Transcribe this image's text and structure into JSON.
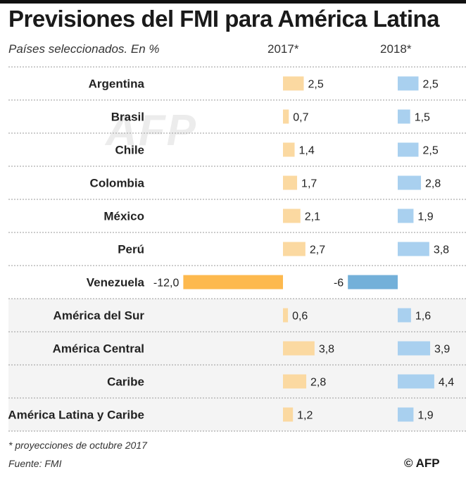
{
  "title": "Previsiones del FMI para América Latina",
  "subtitle": "Países seleccionados. En %",
  "columns": [
    "2017*",
    "2018*"
  ],
  "footnote": "* proyecciones de octubre 2017",
  "source": "Fuente: FMI",
  "credit": "© AFP",
  "watermark": "AFP",
  "colors": {
    "y2017": "#fbd9a1",
    "y2017_negative": "#fdb94e",
    "y2018": "#a9d0ef",
    "y2018_negative": "#73b0d9",
    "shaded_row": "#f4f4f4",
    "divider": "#9a9a9a"
  },
  "chart_data": {
    "type": "bar",
    "categories": [
      "Argentina",
      "Brasil",
      "Chile",
      "Colombia",
      "México",
      "Perú",
      "Venezuela",
      "América del Sur",
      "América Central",
      "Caribe",
      "América Latina y Caribe"
    ],
    "series": [
      {
        "name": "2017*",
        "values": [
          2.5,
          0.7,
          1.4,
          1.7,
          2.1,
          2.7,
          -12.0,
          0.6,
          3.8,
          2.8,
          1.2
        ],
        "labels": [
          "2,5",
          "0,7",
          "1,4",
          "1,7",
          "2,1",
          "2,7",
          "-12,0",
          "0,6",
          "3,8",
          "2,8",
          "1,2"
        ]
      },
      {
        "name": "2018*",
        "values": [
          2.5,
          1.5,
          2.5,
          2.8,
          1.9,
          3.8,
          -6,
          1.6,
          3.9,
          4.4,
          1.9
        ],
        "labels": [
          "2,5",
          "1,5",
          "2,5",
          "2,8",
          "1,9",
          "3,8",
          "-6",
          "1,6",
          "3,9",
          "4,4",
          "1,9"
        ]
      }
    ],
    "shaded_categories": [
      "América del Sur",
      "América Central",
      "Caribe",
      "América Latina y Caribe"
    ],
    "orientation": "horizontal",
    "grid": false,
    "legend": "column headers at top"
  }
}
